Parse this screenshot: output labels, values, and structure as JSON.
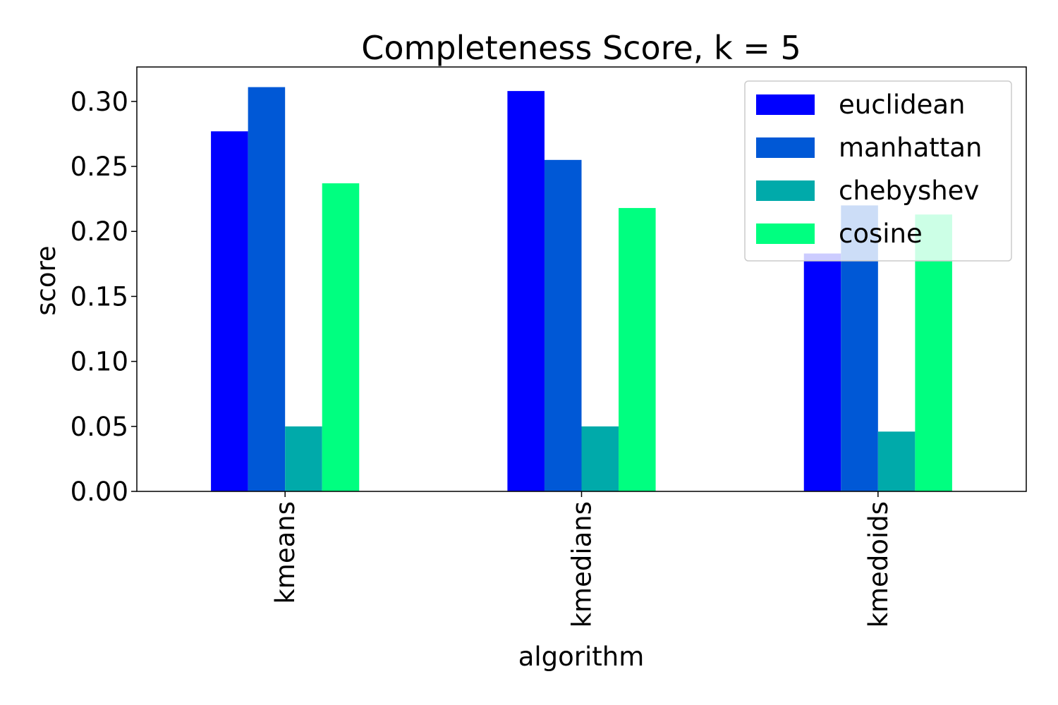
{
  "chart_data": {
    "type": "bar",
    "title": "Completeness Score, k = 5",
    "xlabel": "algorithm",
    "ylabel": "score",
    "categories": [
      "kmeans",
      "kmedians",
      "kmedoids"
    ],
    "series": [
      {
        "name": "euclidean",
        "color": "#0000ff",
        "values": [
          0.277,
          0.308,
          0.183
        ]
      },
      {
        "name": "manhattan",
        "color": "#0058d6",
        "values": [
          0.311,
          0.255,
          0.22
        ]
      },
      {
        "name": "chebyshev",
        "color": "#00aaaa",
        "values": [
          0.05,
          0.05,
          0.046
        ]
      },
      {
        "name": "cosine",
        "color": "#00ff80",
        "values": [
          0.237,
          0.218,
          0.213
        ]
      }
    ],
    "ylim": [
      0,
      0.3265
    ],
    "yticks": [
      0.0,
      0.05,
      0.1,
      0.15,
      0.2,
      0.25,
      0.3
    ],
    "ytick_labels": [
      "0.00",
      "0.05",
      "0.10",
      "0.15",
      "0.20",
      "0.25",
      "0.30"
    ],
    "grid": false,
    "legend_position": "top-right"
  }
}
